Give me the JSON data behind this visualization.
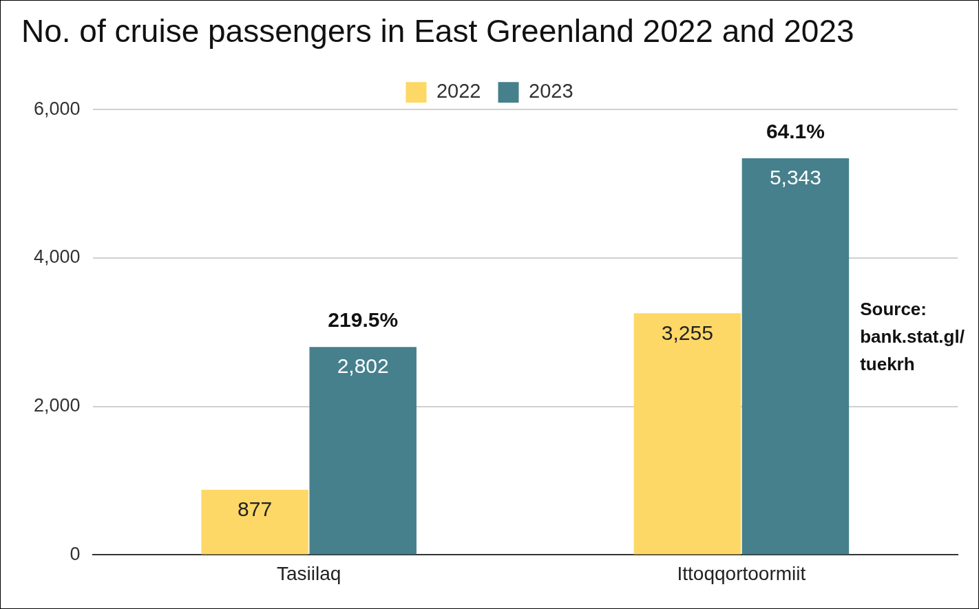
{
  "chart_data": {
    "type": "bar",
    "title": "No. of cruise passengers in East Greenland 2022 and 2023",
    "categories": [
      "Tasiilaq",
      "Ittoqqortoormiit"
    ],
    "series": [
      {
        "name": "2022",
        "color": "#fdd866",
        "values": [
          877,
          3255
        ],
        "value_labels": [
          "877",
          "3,255"
        ]
      },
      {
        "name": "2023",
        "color": "#46808c",
        "values": [
          2802,
          5343
        ],
        "value_labels": [
          "2,802",
          "5,343"
        ]
      }
    ],
    "ylim": [
      0,
      6000
    ],
    "yticks": [
      0,
      {
        "value": 2000,
        "label": "2,000"
      },
      {
        "value": 4000,
        "label": "4,000"
      },
      {
        "value": 6000,
        "label": "6,000"
      }
    ],
    "grid": "y",
    "legend": "top",
    "annotations": [
      {
        "text": "219.5%",
        "x": "Tasiilaq",
        "y": 2802
      },
      {
        "text": "64.1%",
        "x": "Ittoqqortoormiit",
        "y": 5343
      },
      "Source: bank.stat.gl/tuekrh"
    ]
  }
}
